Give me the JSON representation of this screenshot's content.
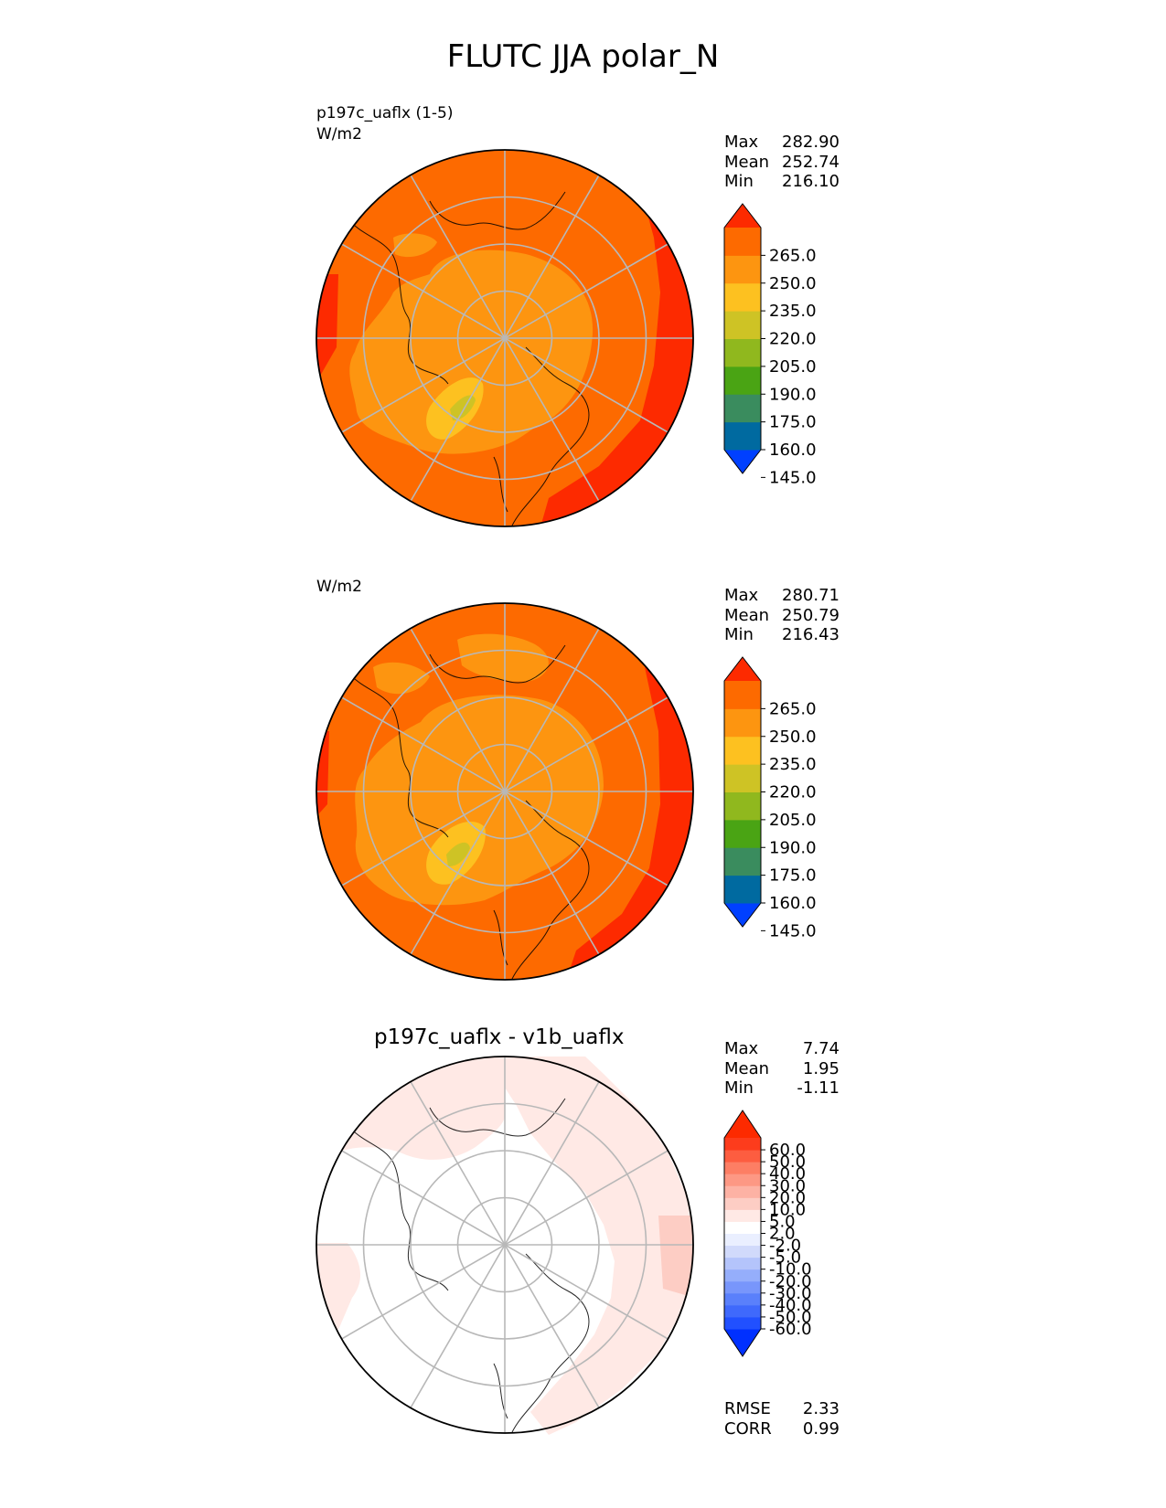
{
  "title": "FLUTC JJA polar_N",
  "panels": [
    {
      "id": "test",
      "label": "p197c_uaflx (1-5)",
      "units": "W/m2",
      "stats": [
        {
          "label": "Max",
          "value": "282.90"
        },
        {
          "label": "Mean",
          "value": "252.74"
        },
        {
          "label": "Min",
          "value": "216.10"
        }
      ],
      "colorbar": {
        "ticks": [
          "265.0",
          "250.0",
          "235.0",
          "220.0",
          "205.0",
          "190.0",
          "175.0",
          "160.0",
          "145.0"
        ],
        "colors": [
          "#0040ff",
          "#006aa0",
          "#3a8c5e",
          "#4aa414",
          "#90b81e",
          "#cec325",
          "#fdc120",
          "#fd9510",
          "#fd6a00",
          "#fd2a00"
        ]
      }
    },
    {
      "id": "reference",
      "label": "",
      "units": "W/m2",
      "stats": [
        {
          "label": "Max",
          "value": "280.71"
        },
        {
          "label": "Mean",
          "value": "250.79"
        },
        {
          "label": "Min",
          "value": "216.43"
        }
      ],
      "colorbar": {
        "ticks": [
          "265.0",
          "250.0",
          "235.0",
          "220.0",
          "205.0",
          "190.0",
          "175.0",
          "160.0",
          "145.0"
        ],
        "colors": [
          "#0040ff",
          "#006aa0",
          "#3a8c5e",
          "#4aa414",
          "#90b81e",
          "#cec325",
          "#fdc120",
          "#fd9510",
          "#fd6a00",
          "#fd2a00"
        ]
      }
    },
    {
      "id": "diff",
      "label": "p197c_uaflx - v1b_uaflx",
      "units": "",
      "stats": [
        {
          "label": "Max",
          "value": "7.74"
        },
        {
          "label": "Mean",
          "value": "1.95"
        },
        {
          "label": "Min",
          "value": "-1.11"
        }
      ],
      "colorbar": {
        "ticks": [
          "60.0",
          "50.0",
          "40.0",
          "30.0",
          "20.0",
          "10.0",
          "5.0",
          "2.0",
          "-2.0",
          "-5.0",
          "-10.0",
          "-20.0",
          "-30.0",
          "-40.0",
          "-50.0",
          "-60.0"
        ],
        "colors": [
          "#0030ff",
          "#2150ff",
          "#3f69fc",
          "#5a80fb",
          "#7896fb",
          "#95aefb",
          "#b4c4fb",
          "#d1dafb",
          "#eaefff",
          "#ffffff",
          "#ffe9e5",
          "#fdcdc4",
          "#fdb2a4",
          "#fd9884",
          "#fd7e64",
          "#fd5d40",
          "#fd3c1c",
          "#fd2a00"
        ]
      },
      "metrics": [
        {
          "label": "RMSE",
          "value": "2.33"
        },
        {
          "label": "CORR",
          "value": "0.99"
        }
      ]
    }
  ]
}
